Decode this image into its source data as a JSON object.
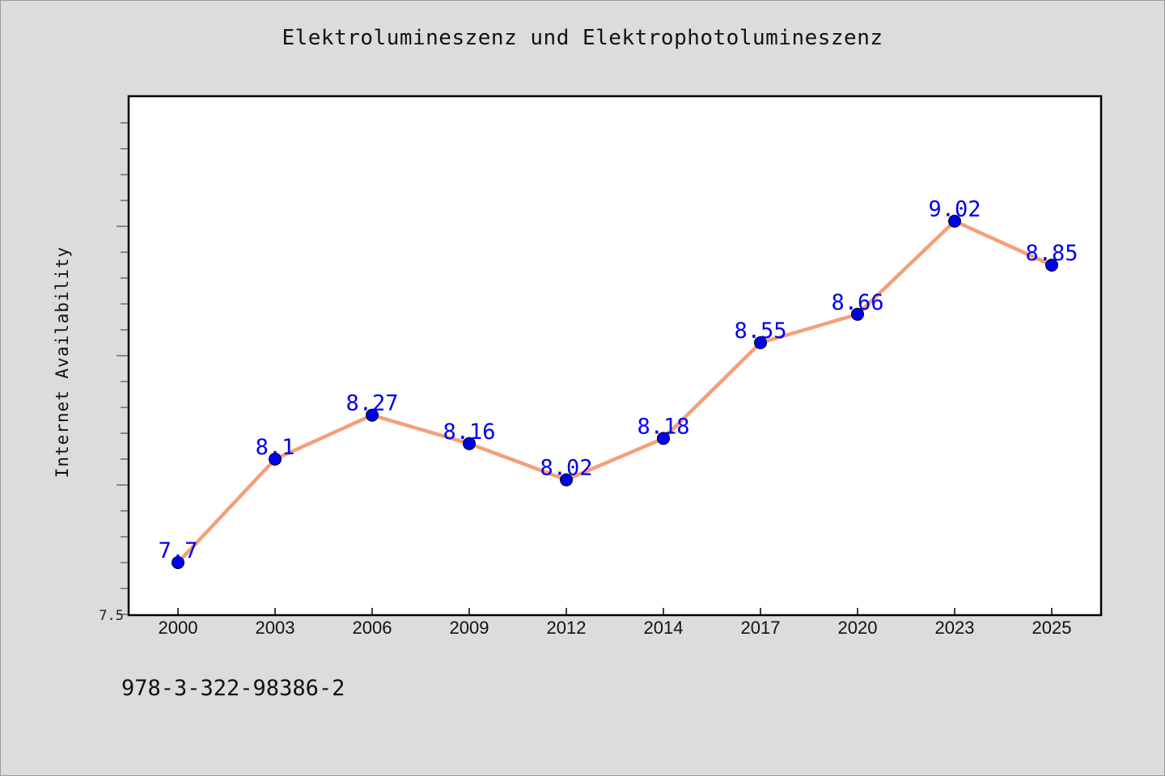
{
  "chart_data": {
    "type": "line",
    "title": "Elektrolumineszenz und Elektrophotolumineszenz",
    "xlabel": "",
    "ylabel": "Internet Availability",
    "categories": [
      "2000",
      "2003",
      "2006",
      "2009",
      "2012",
      "2014",
      "2017",
      "2020",
      "2023",
      "2025"
    ],
    "series": [
      {
        "values": [
          7.7,
          8.1,
          8.27,
          8.16,
          8.02,
          8.18,
          8.55,
          8.66,
          9.02,
          8.85
        ],
        "labels": [
          "7.7",
          "8.1",
          "8.27",
          "8.16",
          "8.02",
          "8.18",
          "8.55",
          "8.66",
          "9.02",
          "8.85"
        ],
        "line_color": "#f59e7a",
        "marker_color": "#0000ee",
        "label_color": "#0000ee"
      }
    ],
    "ylim": [
      7.5,
      9.5
    ],
    "y_tick_labels": [
      "7.5"
    ],
    "grid": false,
    "legend": "none"
  },
  "footer_text": "978-3-322-98386-2"
}
